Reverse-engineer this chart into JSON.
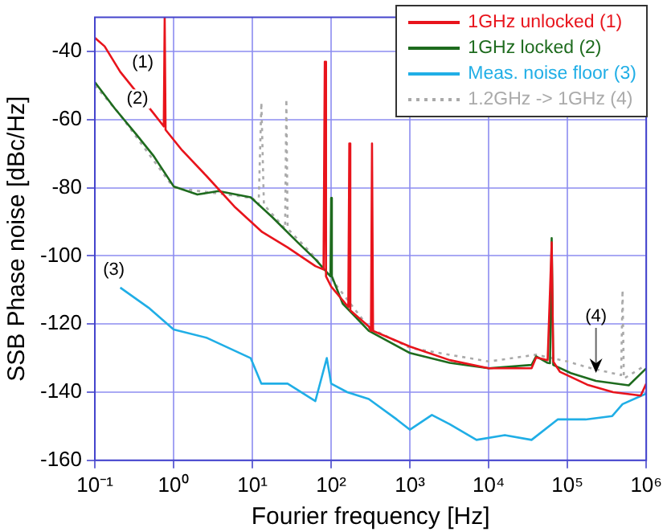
{
  "chart_data": {
    "type": "line",
    "xlabel": "Fourier frequency [Hz]",
    "ylabel": "SSB Phase noise [dBc/Hz]",
    "log": "x",
    "grid": true,
    "legend": "top right",
    "xlim": [
      0.1,
      1000000
    ],
    "ylim": [
      -160,
      -30
    ],
    "xticks": [
      {
        "value": 0.1,
        "label": "10⁻¹"
      },
      {
        "value": 1,
        "label": "10⁰"
      },
      {
        "value": 10,
        "label": "10¹"
      },
      {
        "value": 100,
        "label": "10²"
      },
      {
        "value": 1000,
        "label": "10³"
      },
      {
        "value": 10000,
        "label": "10⁴"
      },
      {
        "value": 100000,
        "label": "10⁵"
      },
      {
        "value": 1000000,
        "label": "10⁶"
      }
    ],
    "yticks": [
      -160,
      -140,
      -120,
      -100,
      -80,
      -60,
      -40
    ],
    "series": [
      {
        "name": "1GHz unlocked (1)",
        "color": "#e8141c",
        "x": [
          0.1,
          0.133,
          0.21,
          0.34,
          0.55,
          0.75,
          0.77,
          0.79,
          1.28,
          2.6,
          5.9,
          13.3,
          28,
          63,
          80,
          83,
          86,
          100,
          165,
          170,
          175,
          300,
          320,
          330,
          340,
          1000,
          3200,
          10000,
          35000,
          40000,
          56000,
          63000,
          66000,
          80000,
          178000,
          380000,
          850000,
          1000000
        ],
        "values": [
          -36,
          -38.5,
          -46,
          -52,
          -58,
          -62,
          -30,
          -63,
          -69,
          -76.5,
          -85.5,
          -93,
          -97.5,
          -103,
          -104,
          -43,
          -106,
          -109,
          -115,
          -67,
          -116,
          -120.7,
          -122,
          -67,
          -122,
          -126.6,
          -130.6,
          -133,
          -133,
          -129.8,
          -130.6,
          -96,
          -131,
          -134,
          -137.8,
          -140,
          -141,
          -137.5
        ]
      },
      {
        "name": "1GHz locked (2)",
        "color": "#1e6b1e",
        "x": [
          0.1,
          0.18,
          0.34,
          0.55,
          1,
          2,
          3.7,
          9.5,
          18,
          39,
          63,
          98,
          100,
          102,
          140,
          300,
          1000,
          3200,
          10000,
          35000,
          40000,
          56000,
          60000,
          63000,
          66000,
          110000,
          230000,
          600000,
          1000000
        ],
        "values": [
          -49,
          -56.8,
          -64.5,
          -70.5,
          -79.6,
          -82,
          -81,
          -82.8,
          -88.7,
          -96.4,
          -101,
          -106,
          -83,
          -106,
          -114,
          -122,
          -128.5,
          -131.4,
          -133,
          -132,
          -129.5,
          -131.4,
          -131.5,
          -94.8,
          -132,
          -134.4,
          -136.7,
          -138,
          -133
        ]
      },
      {
        "name": "Meas. noise floor (3)",
        "color": "#20aee6",
        "x": [
          0.21,
          0.48,
          1,
          2.6,
          9.5,
          13,
          28,
          63,
          88,
          100,
          160,
          300,
          680,
          1000,
          1900,
          3200,
          7000,
          16000,
          35000,
          75000,
          170000,
          370000,
          500000,
          1000000
        ],
        "values": [
          -109.3,
          -115.2,
          -121.6,
          -124,
          -130,
          -137.5,
          -137.5,
          -142.6,
          -130,
          -137.5,
          -140,
          -142,
          -148,
          -151,
          -146.7,
          -149.4,
          -154,
          -152.6,
          -154,
          -148,
          -148,
          -147,
          -143.5,
          -140.4
        ]
      },
      {
        "name": "1.2GHz -> 1GHz (4)",
        "color": "#aaaaaa",
        "line_style": "dotted",
        "x": [
          0.1,
          0.2,
          1,
          10,
          12,
          13,
          14,
          26,
          27,
          28,
          60,
          300,
          1000,
          10000,
          40000,
          100000,
          200000,
          480000,
          500000,
          520000,
          1000000
        ],
        "values": [
          -50,
          -58,
          -80,
          -83,
          -85,
          -55,
          -85,
          -92,
          -54,
          -92,
          -100,
          -121,
          -127,
          -131,
          -129,
          -131,
          -133,
          -135,
          -110,
          -136,
          -132
        ]
      }
    ],
    "annotations": [
      {
        "text": "(1)",
        "x": 0.21,
        "y": -46
      },
      {
        "text": "(2)",
        "x": 0.18,
        "y": -56.8
      },
      {
        "text": "(3)",
        "x": 0.21,
        "y": -109.3
      },
      {
        "text": "(4)",
        "x": 230000,
        "y": -136.7
      }
    ]
  }
}
